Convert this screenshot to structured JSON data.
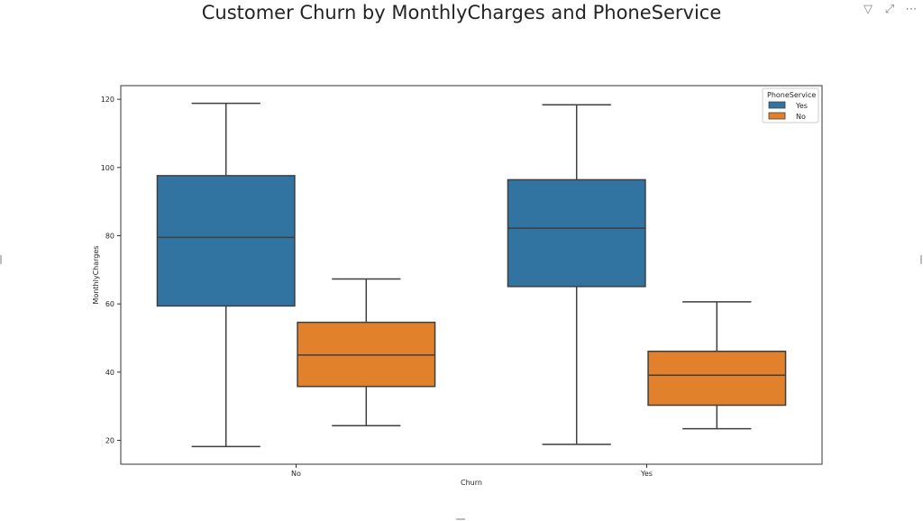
{
  "visual": {
    "title": "Customer Churn by MonthlyCharges and PhoneService",
    "toolbar": [
      {
        "name": "filter-icon",
        "glyph": "▽"
      },
      {
        "name": "focus-mode-icon",
        "glyph": "⤢"
      },
      {
        "name": "more-options-icon",
        "glyph": "⋯"
      }
    ]
  },
  "chart_data": {
    "type": "box",
    "xlabel": "Churn",
    "ylabel": "MonthlyCharges",
    "categories": [
      "No",
      "Yes"
    ],
    "ylim": [
      13,
      124
    ],
    "yticks": [
      20,
      40,
      60,
      80,
      100,
      120
    ],
    "legend": {
      "title": "PhoneService",
      "position": "top-right",
      "entries": [
        "Yes",
        "No"
      ]
    },
    "series": [
      {
        "name": "Yes",
        "color": "#3274a1",
        "boxes": [
          {
            "category": "No",
            "min": 18.2,
            "q1": 59.4,
            "median": 79.5,
            "q3": 97.6,
            "max": 118.8
          },
          {
            "category": "Yes",
            "min": 18.8,
            "q1": 65.1,
            "median": 82.2,
            "q3": 96.4,
            "max": 118.4
          }
        ]
      },
      {
        "name": "No",
        "color": "#e1812c",
        "boxes": [
          {
            "category": "No",
            "min": 24.3,
            "q1": 35.8,
            "median": 45.0,
            "q3": 54.6,
            "max": 67.3
          },
          {
            "category": "Yes",
            "min": 23.4,
            "q1": 30.3,
            "median": 39.1,
            "q3": 46.1,
            "max": 60.6
          }
        ]
      }
    ]
  }
}
